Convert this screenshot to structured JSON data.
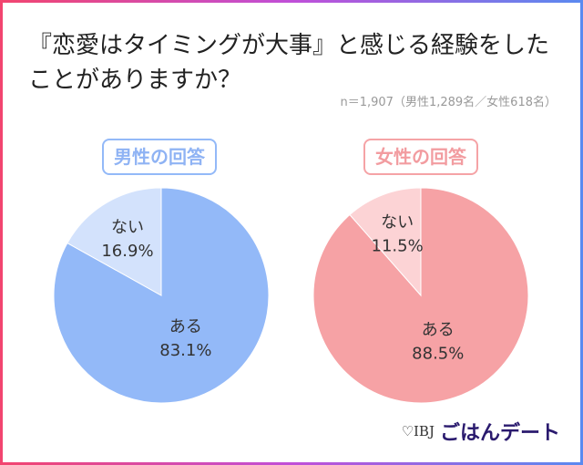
{
  "title": "『恋愛はタイミングが大事』と感じる経験をしたことがありますか？",
  "note": "n＝1,907（男性1,289名／女性618名）",
  "logo": {
    "ibj": "♡IBJ",
    "brand": "ごはんデート"
  },
  "chart_data": [
    {
      "type": "pie",
      "title": "男性の回答",
      "slices": [
        {
          "label": "ある",
          "value": 83.1,
          "display": "83.1%",
          "color": "#93b9f8"
        },
        {
          "label": "ない",
          "value": 16.9,
          "display": "16.9%",
          "color": "#d3e2fc"
        }
      ]
    },
    {
      "type": "pie",
      "title": "女性の回答",
      "slices": [
        {
          "label": "ある",
          "value": 88.5,
          "display": "88.5%",
          "color": "#f6a2a5"
        },
        {
          "label": "ない",
          "value": 11.5,
          "display": "11.5%",
          "color": "#fcd3d5"
        }
      ]
    }
  ]
}
